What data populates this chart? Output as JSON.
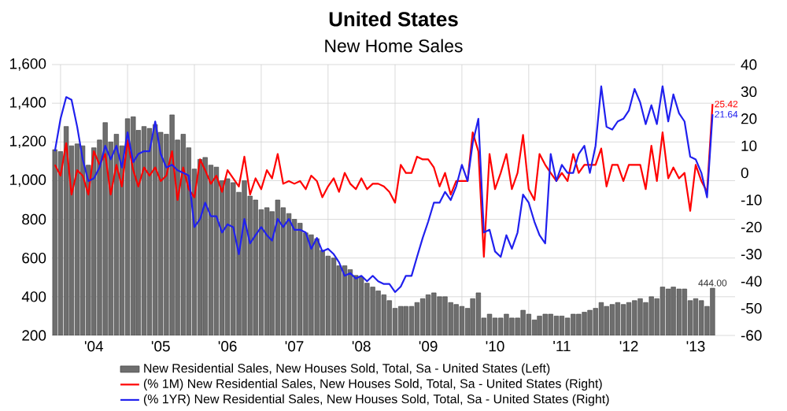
{
  "chart_data": {
    "type": "bar",
    "title": "United States",
    "subtitle": "New Home Sales",
    "x": [
      "2003-12",
      "2004-01",
      "2004-02",
      "2004-03",
      "2004-04",
      "2004-05",
      "2004-06",
      "2004-07",
      "2004-08",
      "2004-09",
      "2004-10",
      "2004-11",
      "2004-12",
      "2005-01",
      "2005-02",
      "2005-03",
      "2005-04",
      "2005-05",
      "2005-06",
      "2005-07",
      "2005-08",
      "2005-09",
      "2005-10",
      "2005-11",
      "2005-12",
      "2006-01",
      "2006-02",
      "2006-03",
      "2006-04",
      "2006-05",
      "2006-06",
      "2006-07",
      "2006-08",
      "2006-09",
      "2006-10",
      "2006-11",
      "2006-12",
      "2007-01",
      "2007-02",
      "2007-03",
      "2007-04",
      "2007-05",
      "2007-06",
      "2007-07",
      "2007-08",
      "2007-09",
      "2007-10",
      "2007-11",
      "2007-12",
      "2008-01",
      "2008-02",
      "2008-03",
      "2008-04",
      "2008-05",
      "2008-06",
      "2008-07",
      "2008-08",
      "2008-09",
      "2008-10",
      "2008-11",
      "2008-12",
      "2009-01",
      "2009-02",
      "2009-03",
      "2009-04",
      "2009-05",
      "2009-06",
      "2009-07",
      "2009-08",
      "2009-09",
      "2009-10",
      "2009-11",
      "2009-12",
      "2010-01",
      "2010-02",
      "2010-03",
      "2010-04",
      "2010-05",
      "2010-06",
      "2010-07",
      "2010-08",
      "2010-09",
      "2010-10",
      "2010-11",
      "2010-12",
      "2011-01",
      "2011-02",
      "2011-03",
      "2011-04",
      "2011-05",
      "2011-06",
      "2011-07",
      "2011-08",
      "2011-09",
      "2011-10",
      "2011-11",
      "2011-12",
      "2012-01",
      "2012-02",
      "2012-03",
      "2012-04",
      "2012-05",
      "2012-06",
      "2012-07",
      "2012-08",
      "2012-09",
      "2012-10",
      "2012-11",
      "2012-12",
      "2013-01",
      "2013-02",
      "2013-03",
      "2013-04",
      "2013-05",
      "2013-06",
      "2013-07",
      "2013-08",
      "2013-09",
      "2013-10"
    ],
    "xlim": [
      "2003-11-15",
      "2014-02"
    ],
    "xticks": [
      {
        "value": "2004-01",
        "label": null
      },
      {
        "value": "2004-07",
        "label": "'04"
      },
      {
        "value": "2005-01",
        "label": null
      },
      {
        "value": "2005-07",
        "label": "'05"
      },
      {
        "value": "2006-01",
        "label": null
      },
      {
        "value": "2006-07",
        "label": "'06"
      },
      {
        "value": "2007-01",
        "label": null
      },
      {
        "value": "2007-07",
        "label": "'07"
      },
      {
        "value": "2008-01",
        "label": null
      },
      {
        "value": "2008-07",
        "label": "'08"
      },
      {
        "value": "2009-01",
        "label": null
      },
      {
        "value": "2009-07",
        "label": "'09"
      },
      {
        "value": "2010-01",
        "label": null
      },
      {
        "value": "2010-07",
        "label": "'10"
      },
      {
        "value": "2011-01",
        "label": null
      },
      {
        "value": "2011-07",
        "label": "'11"
      },
      {
        "value": "2012-01",
        "label": null
      },
      {
        "value": "2012-07",
        "label": "'12"
      },
      {
        "value": "2013-01",
        "label": null
      },
      {
        "value": "2013-07",
        "label": "'13"
      }
    ],
    "ylim": [
      200,
      1600
    ],
    "yticks": [
      200,
      400,
      600,
      800,
      {
        "value": 1000,
        "label": "1,000"
      },
      {
        "value": 1200,
        "label": "1,200"
      },
      {
        "value": 1400,
        "label": "1,400"
      },
      {
        "value": 1600,
        "label": "1,600"
      }
    ],
    "y2lim": [
      -60,
      40
    ],
    "y2ticks": [
      -60,
      -50,
      -40,
      -30,
      -20,
      -10,
      0,
      10,
      20,
      30,
      40
    ],
    "grid": true,
    "legend": "bottom",
    "series": [
      {
        "name": "New Residential Sales, New Houses Sold, Total, Sa - United States  (Left)",
        "axis": "y",
        "color": "#6e6e6e",
        "values": [
          1160,
          1150,
          1280,
          1180,
          1190,
          1180,
          1080,
          1170,
          1210,
          1300,
          1200,
          1240,
          1180,
          1320,
          1330,
          1260,
          1280,
          1270,
          1290,
          1250,
          1240,
          1340,
          1210,
          1240,
          1170,
          1060,
          1110,
          1120,
          1080,
          1070,
          1000,
          1010,
          990,
          940,
          1000,
          920,
          900,
          850,
          860,
          840,
          900,
          860,
          830,
          800,
          780,
          730,
          720,
          700,
          640,
          610,
          600,
          560,
          560,
          540,
          510,
          500,
          470,
          450,
          430,
          410,
          380,
          340,
          350,
          350,
          350,
          370,
          390,
          410,
          420,
          400,
          400,
          370,
          360,
          350,
          340,
          390,
          420,
          290,
          310,
          290,
          290,
          310,
          290,
          290,
          330,
          310,
          280,
          300,
          310,
          310,
          300,
          300,
          290,
          310,
          310,
          320,
          330,
          340,
          370,
          350,
          360,
          370,
          360,
          370,
          380,
          390,
          370,
          400,
          390,
          450,
          440,
          450,
          440,
          440,
          380,
          390,
          380,
          350,
          444
        ],
        "value_labels": [
          null,
          null,
          null,
          null,
          null,
          null,
          null,
          null,
          null,
          null,
          null,
          null,
          null,
          null,
          null,
          null,
          null,
          null,
          null,
          null,
          null,
          null,
          null,
          null,
          null,
          null,
          null,
          null,
          null,
          null,
          null,
          null,
          null,
          null,
          null,
          null,
          null,
          null,
          null,
          null,
          null,
          null,
          null,
          null,
          null,
          null,
          null,
          null,
          null,
          null,
          null,
          null,
          null,
          null,
          null,
          null,
          null,
          null,
          null,
          null,
          null,
          null,
          null,
          null,
          null,
          null,
          null,
          null,
          null,
          null,
          null,
          null,
          null,
          null,
          null,
          null,
          null,
          null,
          null,
          null,
          null,
          null,
          null,
          null,
          null,
          null,
          null,
          null,
          null,
          null,
          null,
          null,
          null,
          null,
          null,
          null,
          null,
          null,
          null,
          null,
          null,
          null,
          null,
          null,
          null,
          null,
          null,
          null,
          null,
          null,
          null,
          null,
          null,
          null,
          null,
          null,
          null,
          null,
          "444.00"
        ]
      },
      {
        "name": "(% 1M) New Residential Sales, New Houses Sold, Total, Sa - United States  (Right)",
        "type": "line",
        "axis": "y2",
        "color": "#ff0000",
        "values": [
          3,
          -1,
          11,
          -8,
          1,
          -1,
          -8,
          8,
          3,
          7,
          -8,
          3,
          -5,
          12,
          1,
          -5,
          2,
          -1,
          2,
          -3,
          -1,
          8,
          -10,
          2,
          -6,
          -9,
          5,
          1,
          -4,
          -1,
          -7,
          1,
          -2,
          -5,
          6,
          -8,
          -2,
          -6,
          1,
          -2,
          7,
          -4,
          -3,
          -4,
          -3,
          -6,
          -1,
          -3,
          -9,
          -5,
          -2,
          -7,
          0,
          -4,
          -6,
          -2,
          -6,
          -4,
          -4,
          -5,
          -7,
          -11,
          3,
          0,
          0,
          6,
          5,
          5,
          2,
          -5,
          0,
          -8,
          -3,
          -3,
          -3,
          15,
          8,
          -31,
          7,
          -6,
          0,
          7,
          -6,
          0,
          14,
          -6,
          -10,
          7,
          3,
          0,
          -3,
          0,
          -3,
          7,
          0,
          3,
          3,
          3,
          9,
          -5,
          3,
          3,
          -3,
          3,
          3,
          3,
          -6,
          10,
          -3,
          15,
          -2,
          2,
          -2,
          0,
          -14,
          3,
          -3,
          -7,
          25.42
        ],
        "value_labels": [
          null,
          null,
          null,
          null,
          null,
          null,
          null,
          null,
          null,
          null,
          null,
          null,
          null,
          null,
          null,
          null,
          null,
          null,
          null,
          null,
          null,
          null,
          null,
          null,
          null,
          null,
          null,
          null,
          null,
          null,
          null,
          null,
          null,
          null,
          null,
          null,
          null,
          null,
          null,
          null,
          null,
          null,
          null,
          null,
          null,
          null,
          null,
          null,
          null,
          null,
          null,
          null,
          null,
          null,
          null,
          null,
          null,
          null,
          null,
          null,
          null,
          null,
          null,
          null,
          null,
          null,
          null,
          null,
          null,
          null,
          null,
          null,
          null,
          null,
          null,
          null,
          null,
          null,
          null,
          null,
          null,
          null,
          null,
          null,
          null,
          null,
          null,
          null,
          null,
          null,
          null,
          null,
          null,
          null,
          null,
          null,
          null,
          null,
          null,
          null,
          null,
          null,
          null,
          null,
          null,
          null,
          null,
          null,
          null,
          null,
          null,
          null,
          null,
          null,
          null,
          null,
          null,
          null,
          "25.42"
        ]
      },
      {
        "name": "(% 1YR) New Residential Sales, New Houses Sold, Total, Sa - United States  (Right)",
        "type": "line",
        "axis": "y2",
        "color": "#2020ee",
        "values": [
          8,
          20,
          28,
          27,
          17,
          5,
          -3,
          -2,
          2,
          10,
          5,
          10,
          2,
          15,
          4,
          7,
          8,
          8,
          19,
          7,
          2,
          3,
          1,
          0,
          -1,
          -20,
          -17,
          -11,
          -16,
          -16,
          -22,
          -19,
          -20,
          -30,
          -17,
          -26,
          -23,
          -20,
          -23,
          -25,
          -17,
          -20,
          -17,
          -21,
          -21,
          -22,
          -28,
          -24,
          -29,
          -28,
          -30,
          -33,
          -38,
          -37,
          -39,
          -38,
          -40,
          -38,
          -40,
          -41,
          -41,
          -44,
          -42,
          -38,
          -38,
          -31,
          -24,
          -18,
          -11,
          -11,
          -7,
          -10,
          -5,
          3,
          -3,
          11,
          20,
          -22,
          -21,
          -29,
          -31,
          -23,
          -28,
          -22,
          -8,
          -11,
          -18,
          -23,
          -26,
          7,
          -3,
          3,
          0,
          0,
          7,
          10,
          0,
          10,
          32,
          17,
          16,
          19,
          20,
          23,
          31,
          26,
          18,
          25,
          18,
          32,
          19,
          29,
          22,
          19,
          6,
          5,
          0,
          -9,
          21.64
        ],
        "value_labels": [
          null,
          null,
          null,
          null,
          null,
          null,
          null,
          null,
          null,
          null,
          null,
          null,
          null,
          null,
          null,
          null,
          null,
          null,
          null,
          null,
          null,
          null,
          null,
          null,
          null,
          null,
          null,
          null,
          null,
          null,
          null,
          null,
          null,
          null,
          null,
          null,
          null,
          null,
          null,
          null,
          null,
          null,
          null,
          null,
          null,
          null,
          null,
          null,
          null,
          null,
          null,
          null,
          null,
          null,
          null,
          null,
          null,
          null,
          null,
          null,
          null,
          null,
          null,
          null,
          null,
          null,
          null,
          null,
          null,
          null,
          null,
          null,
          null,
          null,
          null,
          null,
          null,
          null,
          null,
          null,
          null,
          null,
          null,
          null,
          null,
          null,
          null,
          null,
          null,
          null,
          null,
          null,
          null,
          null,
          null,
          null,
          null,
          null,
          null,
          null,
          null,
          null,
          null,
          null,
          null,
          null,
          null,
          null,
          null,
          null,
          null,
          null,
          null,
          null,
          null,
          null,
          null,
          null,
          "21.64"
        ]
      }
    ]
  }
}
